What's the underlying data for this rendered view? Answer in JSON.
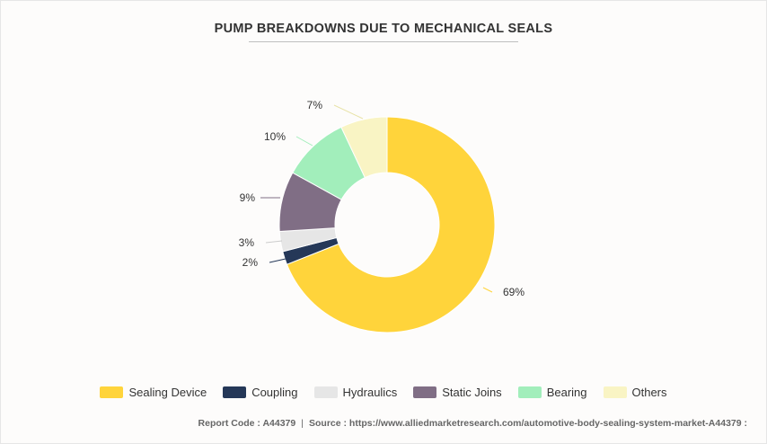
{
  "chart_data": {
    "type": "pie",
    "variant": "donut",
    "title": "PUMP BREAKDOWNS DUE TO MECHANICAL SEALS",
    "categories": [
      "Sealing Device",
      "Coupling",
      "Hydraulics",
      "Static Joins",
      "Bearing",
      "Others"
    ],
    "values": [
      69,
      2,
      3,
      9,
      10,
      7
    ],
    "labels": [
      "69%",
      "2%",
      "3%",
      "9%",
      "10%",
      "7%"
    ],
    "colors": [
      "#ffd43b",
      "#253858",
      "#e6e6e6",
      "#806e85",
      "#a2eebb",
      "#f9f4c4"
    ],
    "legend_position": "bottom"
  },
  "footer": {
    "report_code": "Report Code : A44379",
    "separator": "|",
    "source": "Source : https://www.alliedmarketresearch.com/automotive-body-sealing-system-market-A44379 :"
  }
}
